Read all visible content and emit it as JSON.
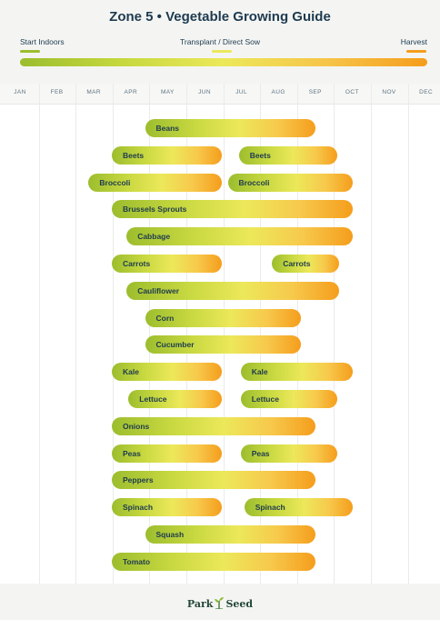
{
  "header": {
    "title": "Zone 5  •  Vegetable Growing Guide"
  },
  "legend": {
    "start_indoors": "Start Indoors",
    "transplant": "Transplant / Direct Sow",
    "harvest": "Harvest",
    "colors": {
      "start_indoors": "#9cbd2e",
      "transplant": "#ece85a",
      "harvest": "#f59d1c"
    }
  },
  "footer": {
    "logo_left": "Park",
    "logo_icon": "sprout-icon",
    "logo_right": "Seed"
  },
  "chart_data": {
    "type": "gantt",
    "title": "Zone 5  •  Vegetable Growing Guide",
    "months": [
      "JAN",
      "FEB",
      "MAR",
      "APR",
      "MAY",
      "JUN",
      "JUL",
      "AUG",
      "SEP",
      "OCT",
      "NOV",
      "DEC"
    ],
    "x_unit": "month (Jan = 1)",
    "grid": true,
    "legend_position": "top",
    "crops": [
      {
        "name": "Beans",
        "spans": [
          [
            4.88,
            9.5
          ]
        ]
      },
      {
        "name": "Beets",
        "spans": [
          [
            3.98,
            6.95
          ],
          [
            7.42,
            10.1
          ]
        ]
      },
      {
        "name": "Broccoli",
        "spans": [
          [
            3.35,
            6.95
          ],
          [
            7.12,
            10.5
          ]
        ]
      },
      {
        "name": "Brussels Sprouts",
        "spans": [
          [
            3.98,
            10.5
          ]
        ]
      },
      {
        "name": "Cabbage",
        "spans": [
          [
            4.38,
            10.5
          ]
        ]
      },
      {
        "name": "Carrots",
        "spans": [
          [
            3.98,
            6.95
          ],
          [
            8.32,
            10.15
          ]
        ]
      },
      {
        "name": "Cauliflower",
        "spans": [
          [
            4.38,
            10.15
          ]
        ]
      },
      {
        "name": "Corn",
        "spans": [
          [
            4.88,
            9.1
          ]
        ]
      },
      {
        "name": "Cucumber",
        "spans": [
          [
            4.88,
            9.1
          ]
        ]
      },
      {
        "name": "Kale",
        "spans": [
          [
            3.98,
            6.95
          ],
          [
            7.47,
            10.5
          ]
        ]
      },
      {
        "name": "Lettuce",
        "spans": [
          [
            4.43,
            6.95
          ],
          [
            7.47,
            10.1
          ]
        ]
      },
      {
        "name": "Onions",
        "spans": [
          [
            3.98,
            9.5
          ]
        ]
      },
      {
        "name": "Peas",
        "spans": [
          [
            3.98,
            6.95
          ],
          [
            7.47,
            10.1
          ]
        ]
      },
      {
        "name": "Peppers",
        "spans": [
          [
            3.98,
            9.5
          ]
        ]
      },
      {
        "name": "Spinach",
        "spans": [
          [
            3.98,
            6.95
          ],
          [
            7.57,
            10.5
          ]
        ]
      },
      {
        "name": "Squash",
        "spans": [
          [
            4.88,
            9.5
          ]
        ]
      },
      {
        "name": "Tomato",
        "spans": [
          [
            3.98,
            9.5
          ]
        ]
      }
    ]
  }
}
